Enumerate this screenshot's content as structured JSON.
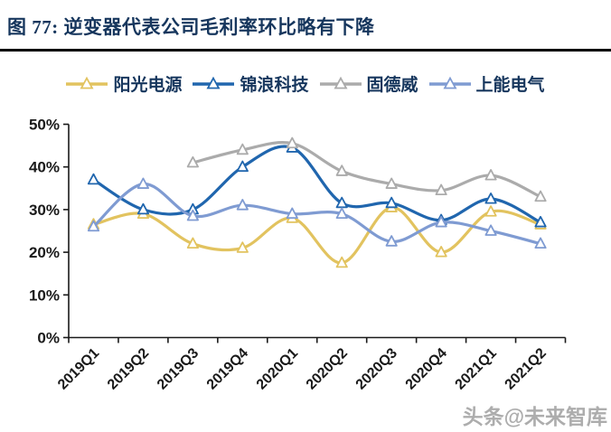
{
  "figure": {
    "title": "图 77:  逆变器代表公司毛利率环比略有下降",
    "watermark": "头条@未来智库"
  },
  "colors": {
    "title_navy": "#16365D",
    "divider_black": "#000000",
    "axis_black": "#1A1A1A",
    "watermark_gray": "#ADADAD"
  },
  "chart_data": {
    "type": "line",
    "title": "逆变器代表公司毛利率环比略有下降",
    "smooth": true,
    "grid": false,
    "legend_position": "top",
    "marker": "open-triangle",
    "xlabel": "",
    "ylabel": "",
    "ylim": [
      0,
      50
    ],
    "y_ticks": [
      {
        "label": "0%",
        "value": 0
      },
      {
        "label": "10%",
        "value": 10
      },
      {
        "label": "20%",
        "value": 20
      },
      {
        "label": "30%",
        "value": 30
      },
      {
        "label": "40%",
        "value": 40
      },
      {
        "label": "50%",
        "value": 50
      }
    ],
    "categories": [
      "2019Q1",
      "2019Q2",
      "2019Q3",
      "2019Q4",
      "2020Q1",
      "2020Q2",
      "2020Q3",
      "2020Q4",
      "2021Q1",
      "2021Q2"
    ],
    "series": [
      {
        "name": "阳光电源",
        "color": "#E2C35F",
        "values": [
          26.5,
          29,
          22,
          21,
          28,
          17.5,
          30.5,
          20,
          29.5,
          26.5
        ]
      },
      {
        "name": "锦浪科技",
        "color": "#2066AE",
        "values": [
          37,
          30,
          30,
          40,
          44.5,
          31.5,
          31.5,
          27.5,
          32.5,
          27
        ]
      },
      {
        "name": "固德威",
        "color": "#ABABAB",
        "values": [
          null,
          null,
          41,
          44,
          45.5,
          39,
          36,
          34.5,
          38,
          33
        ]
      },
      {
        "name": "上能电气",
        "color": "#7F9BD2",
        "values": [
          26,
          36,
          28.5,
          31,
          29,
          29,
          22.5,
          27,
          25,
          22
        ]
      }
    ]
  }
}
